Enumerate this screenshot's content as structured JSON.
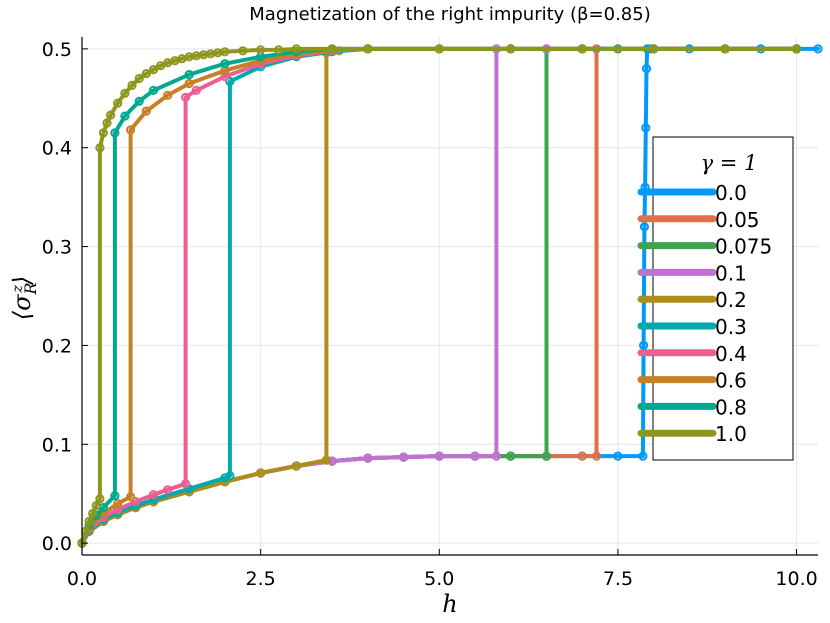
{
  "chart_data": {
    "type": "line",
    "title": "Magnetization of the right impurity (β=0.85)",
    "xlabel": "h",
    "ylabel": "⟨σ_R^z⟩",
    "xlim": [
      0,
      10.3
    ],
    "ylim": [
      -0.012,
      0.512
    ],
    "xticks": [
      0,
      2.5,
      5,
      7.5,
      10
    ],
    "xtick_labels": [
      "0.0",
      "2.5",
      "5.0",
      "7.5",
      "10.0"
    ],
    "yticks": [
      0,
      0.1,
      0.2,
      0.3,
      0.4,
      0.5
    ],
    "ytick_labels": [
      "0.0",
      "0.1",
      "0.2",
      "0.3",
      "0.4",
      "0.5"
    ],
    "grid": true,
    "legend_title": "γ = 1",
    "legend_position": "right",
    "series": [
      {
        "name": "0.0",
        "color": "#009AFA",
        "x": [
          0,
          0.1,
          0.3,
          0.5,
          0.75,
          1.0,
          1.5,
          2.0,
          2.5,
          3.0,
          3.5,
          4.0,
          4.5,
          5.0,
          5.5,
          6.0,
          6.5,
          7.0,
          7.5,
          7.85,
          7.86,
          7.87,
          7.88,
          7.89,
          7.9,
          7.91,
          7.95,
          8.0,
          8.5,
          9.0,
          9.5,
          10.0,
          10.3
        ],
        "y": [
          0,
          0.012,
          0.022,
          0.029,
          0.036,
          0.042,
          0.052,
          0.062,
          0.071,
          0.078,
          0.083,
          0.086,
          0.087,
          0.088,
          0.088,
          0.088,
          0.088,
          0.088,
          0.088,
          0.088,
          0.2,
          0.32,
          0.36,
          0.42,
          0.48,
          0.5,
          0.5,
          0.5,
          0.5,
          0.5,
          0.5,
          0.5,
          0.5
        ]
      },
      {
        "name": "0.05",
        "color": "#E36F47",
        "x": [
          0,
          0.1,
          0.3,
          0.5,
          0.75,
          1.0,
          1.5,
          2.0,
          2.5,
          3.0,
          3.5,
          4.0,
          4.5,
          5.0,
          5.5,
          6.0,
          6.5,
          7.0,
          7.2,
          7.2,
          7.5,
          8.0,
          9.0,
          10.0
        ],
        "y": [
          0,
          0.012,
          0.022,
          0.029,
          0.036,
          0.042,
          0.052,
          0.062,
          0.071,
          0.078,
          0.083,
          0.086,
          0.087,
          0.088,
          0.088,
          0.088,
          0.088,
          0.088,
          0.088,
          0.5,
          0.5,
          0.5,
          0.5,
          0.5
        ]
      },
      {
        "name": "0.075",
        "color": "#3EA44E",
        "x": [
          0,
          0.1,
          0.3,
          0.5,
          0.75,
          1.0,
          1.5,
          2.0,
          2.5,
          3.0,
          3.5,
          4.0,
          4.5,
          5.0,
          5.5,
          6.0,
          6.5,
          6.5,
          7.0,
          7.5,
          8.0,
          9.0,
          10.0
        ],
        "y": [
          0,
          0.012,
          0.022,
          0.029,
          0.036,
          0.042,
          0.052,
          0.062,
          0.071,
          0.078,
          0.083,
          0.086,
          0.087,
          0.088,
          0.088,
          0.088,
          0.088,
          0.5,
          0.5,
          0.5,
          0.5,
          0.5,
          0.5
        ]
      },
      {
        "name": "0.1",
        "color": "#C271D2",
        "x": [
          0,
          0.1,
          0.3,
          0.5,
          0.75,
          1.0,
          1.5,
          2.0,
          2.5,
          3.0,
          3.5,
          4.0,
          4.5,
          5.0,
          5.5,
          5.8,
          5.8,
          6.0,
          6.5,
          7.0,
          8.0,
          9.0,
          10.0
        ],
        "y": [
          0,
          0.012,
          0.022,
          0.029,
          0.036,
          0.042,
          0.052,
          0.062,
          0.071,
          0.078,
          0.083,
          0.086,
          0.087,
          0.088,
          0.088,
          0.088,
          0.5,
          0.5,
          0.5,
          0.5,
          0.5,
          0.5,
          0.5
        ]
      },
      {
        "name": "0.2",
        "color": "#AC8E18",
        "x": [
          0,
          0.1,
          0.3,
          0.5,
          0.75,
          1.0,
          1.5,
          2.0,
          2.5,
          3.0,
          3.42,
          3.42,
          3.6,
          4.0,
          5.0,
          6.0,
          7.0,
          8.0,
          9.0,
          10.0
        ],
        "y": [
          0,
          0.012,
          0.022,
          0.029,
          0.036,
          0.042,
          0.052,
          0.062,
          0.071,
          0.078,
          0.084,
          0.496,
          0.498,
          0.5,
          0.5,
          0.5,
          0.5,
          0.5,
          0.5,
          0.5
        ]
      },
      {
        "name": "0.3",
        "color": "#00A9AD",
        "x": [
          0,
          0.1,
          0.3,
          0.5,
          0.75,
          1.0,
          1.5,
          2.0,
          2.07,
          2.07,
          2.5,
          3.0,
          3.5,
          4.0,
          5.0,
          6.0,
          7.0,
          8.0,
          9.0,
          10.0
        ],
        "y": [
          0,
          0.013,
          0.024,
          0.031,
          0.038,
          0.044,
          0.055,
          0.066,
          0.068,
          0.467,
          0.482,
          0.492,
          0.497,
          0.5,
          0.5,
          0.5,
          0.5,
          0.5,
          0.5,
          0.5
        ]
      },
      {
        "name": "0.4",
        "color": "#ED5E93",
        "x": [
          0,
          0.1,
          0.3,
          0.5,
          0.75,
          1.0,
          1.2,
          1.45,
          1.45,
          1.6,
          2.0,
          2.5,
          3.0,
          3.5,
          4.0,
          5.0,
          6.0,
          7.0,
          8.0,
          9.0,
          10.0
        ],
        "y": [
          0,
          0.014,
          0.026,
          0.034,
          0.042,
          0.049,
          0.054,
          0.06,
          0.451,
          0.458,
          0.472,
          0.485,
          0.493,
          0.498,
          0.5,
          0.5,
          0.5,
          0.5,
          0.5,
          0.5,
          0.5
        ]
      },
      {
        "name": "0.6",
        "color": "#C68125",
        "x": [
          0,
          0.1,
          0.3,
          0.5,
          0.68,
          0.68,
          0.9,
          1.2,
          1.5,
          2.0,
          2.5,
          3.0,
          3.5,
          4.0,
          5.0,
          6.0,
          7.0,
          8.0,
          9.0,
          10.0
        ],
        "y": [
          0,
          0.016,
          0.03,
          0.04,
          0.047,
          0.418,
          0.437,
          0.453,
          0.465,
          0.478,
          0.488,
          0.495,
          0.499,
          0.5,
          0.5,
          0.5,
          0.5,
          0.5,
          0.5,
          0.5
        ]
      },
      {
        "name": "0.8",
        "color": "#00A98D",
        "x": [
          0,
          0.1,
          0.2,
          0.3,
          0.46,
          0.46,
          0.6,
          0.8,
          1.0,
          1.5,
          2.0,
          2.5,
          3.0,
          3.5,
          4.0,
          5.0,
          6.0,
          7.0,
          8.0,
          9.0,
          10.0
        ],
        "y": [
          0,
          0.018,
          0.028,
          0.036,
          0.048,
          0.415,
          0.432,
          0.447,
          0.458,
          0.474,
          0.485,
          0.492,
          0.497,
          0.5,
          0.5,
          0.5,
          0.5,
          0.5,
          0.5,
          0.5,
          0.5
        ]
      },
      {
        "name": "1.0",
        "color": "#8E971D",
        "x": [
          0,
          0.05,
          0.1,
          0.15,
          0.2,
          0.25,
          0.25,
          0.3,
          0.35,
          0.4,
          0.5,
          0.6,
          0.7,
          0.8,
          0.9,
          1.0,
          1.1,
          1.2,
          1.3,
          1.4,
          1.5,
          1.6,
          1.7,
          1.8,
          1.9,
          2.0,
          2.25,
          2.5,
          2.75,
          3.0,
          3.5,
          4.0,
          5.0,
          6.0,
          7.0,
          8.0,
          9.0,
          10.0
        ],
        "y": [
          0,
          0.012,
          0.022,
          0.03,
          0.038,
          0.045,
          0.4,
          0.415,
          0.425,
          0.433,
          0.445,
          0.455,
          0.463,
          0.47,
          0.475,
          0.479,
          0.483,
          0.486,
          0.488,
          0.49,
          0.492,
          0.493,
          0.494,
          0.495,
          0.496,
          0.497,
          0.498,
          0.499,
          0.499,
          0.5,
          0.5,
          0.5,
          0.5,
          0.5,
          0.5,
          0.5,
          0.5,
          0.5
        ]
      }
    ]
  }
}
